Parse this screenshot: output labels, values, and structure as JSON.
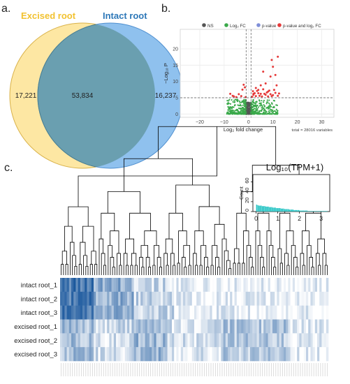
{
  "panel_labels": [
    "a.",
    "b.",
    "c."
  ],
  "chart_data": [
    {
      "type": "venn",
      "sets": [
        {
          "name": "Excised root",
          "unique": 17221,
          "label_color": "#f2c230",
          "fill": "#fde7a3"
        },
        {
          "name": "Intact root",
          "unique": 16237,
          "label_color": "#2e78b8",
          "fill": "#8fc1ee"
        }
      ],
      "intersection": 53834,
      "intersection_fill": "#6a9fb0",
      "labels": {
        "left": "17,221",
        "center": "53,834",
        "right": "16,237"
      }
    },
    {
      "type": "scatter",
      "title": "",
      "legend": [
        {
          "label": "NS",
          "color": "#555555"
        },
        {
          "label": "Log₂ FC",
          "color": "#3aa94a"
        },
        {
          "label": "p-value",
          "color": "#7f8fd8"
        },
        {
          "label": "p-value and log₂ FC",
          "color": "#e53a3a"
        }
      ],
      "xlabel": "Log₂ fold change",
      "ylabel": "−Log₁₀ P",
      "xlim": [
        -28,
        35
      ],
      "ylim": [
        -1,
        26
      ],
      "xticks": [
        -20,
        -10,
        0,
        10,
        20,
        30
      ],
      "yticks": [
        0,
        5,
        10,
        15,
        20
      ],
      "thresholds": {
        "fc": [
          -1,
          1
        ],
        "p": 5
      },
      "caption": "total = 28016 variables",
      "grid": true,
      "significant_points": [
        [
          -7.5,
          6.2
        ],
        [
          -6,
          5.4
        ],
        [
          -5,
          5.2
        ],
        [
          -3,
          5.5
        ],
        [
          -2.5,
          7.5
        ],
        [
          -2,
          9
        ],
        [
          -1.5,
          8.2
        ],
        [
          -1.2,
          5.2
        ],
        [
          -4,
          6.1
        ],
        [
          -6.5,
          5.6
        ],
        [
          1.5,
          5.3
        ],
        [
          2,
          5.9
        ],
        [
          2.5,
          6.4
        ],
        [
          3,
          5.5
        ],
        [
          3.5,
          7.1
        ],
        [
          4,
          6.4
        ],
        [
          4.5,
          5.6
        ],
        [
          5,
          6.2
        ],
        [
          5.5,
          5.4
        ],
        [
          6,
          7.6
        ],
        [
          6.5,
          6.2
        ],
        [
          7,
          5.9
        ],
        [
          7.5,
          6.6
        ],
        [
          8,
          6.9
        ],
        [
          8.5,
          7.2
        ],
        [
          9,
          6.1
        ],
        [
          9.5,
          5.5
        ],
        [
          10,
          5.8
        ],
        [
          11,
          6.5
        ],
        [
          12,
          5.6
        ],
        [
          12.5,
          6.3
        ],
        [
          3,
          8
        ],
        [
          5,
          8.8
        ],
        [
          7,
          9.4
        ],
        [
          9,
          11.5
        ],
        [
          9.5,
          16.6
        ],
        [
          10,
          14.5
        ],
        [
          12,
          17.6
        ],
        [
          11,
          12
        ],
        [
          6,
          13
        ],
        [
          2,
          6.2
        ],
        [
          4,
          7.4
        ],
        [
          1.8,
          7
        ],
        [
          8,
          5.4
        ],
        [
          10.5,
          7.4
        ],
        [
          11.5,
          8.8
        ]
      ]
    },
    {
      "type": "heatmap",
      "rows": [
        "intact root_1",
        "intact root_2",
        "intact root_3",
        "excised root_1",
        "excised root_2",
        "excised root_3"
      ],
      "n_columns": 120,
      "color_scale": [
        "#ffffff",
        "#0b4c96"
      ],
      "inset": {
        "type": "histogram",
        "title": "Log₁₀(TPM+1)",
        "xlabel": "",
        "ylabel": "Count",
        "xticks": [
          0,
          1,
          2,
          3
        ],
        "yticks": [
          0,
          20,
          40,
          60
        ],
        "xlim": [
          -0.15,
          3.4
        ],
        "ylim": [
          0,
          75
        ],
        "bar_color": "#27c4c4",
        "values": [
          14,
          13,
          12,
          12,
          12,
          11,
          11,
          11,
          10,
          10,
          10,
          9,
          9,
          9,
          8,
          8,
          8,
          7,
          7,
          7,
          7,
          6,
          6,
          6,
          5,
          5,
          5,
          5,
          4,
          4,
          4,
          4,
          3,
          3,
          3,
          3,
          3,
          2,
          2,
          2,
          2,
          2,
          2,
          2,
          1,
          1,
          1,
          1,
          1,
          1,
          1,
          1,
          1,
          1,
          1,
          1,
          1,
          1,
          1,
          1,
          1
        ]
      }
    }
  ]
}
